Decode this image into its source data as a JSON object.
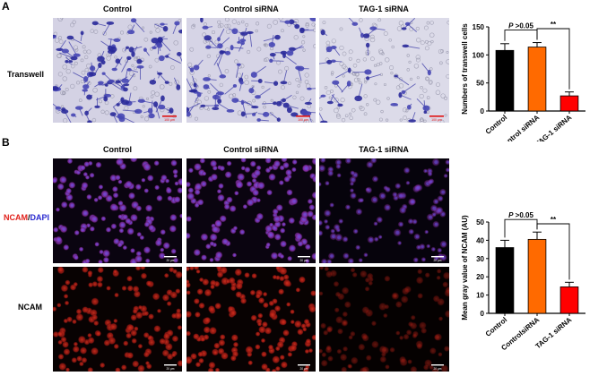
{
  "panel_a": {
    "letter": "A",
    "columns": [
      "Control",
      "Control siRNA",
      "TAG-1 siRNA"
    ],
    "row_label": "Transwell",
    "scale_label": "100 μm"
  },
  "panel_b": {
    "letter": "B",
    "columns": [
      "Control",
      "Control siRNA",
      "TAG-1 siRNA"
    ],
    "row_label_merge_a": "NCAM",
    "row_label_merge_sep": "/",
    "row_label_merge_b": "DAPI",
    "row_label_ncam": "NCAM",
    "scale_label": "20 μm",
    "colors": {
      "ncam": "#e0201a",
      "dapi": "#2a2ad0"
    }
  },
  "chart_data": [
    {
      "type": "bar",
      "categories": [
        "Control",
        "Control siRNA",
        "TAG-1 siRNA"
      ],
      "values": [
        108,
        114,
        27
      ],
      "errors": [
        12,
        8,
        7
      ],
      "colors": [
        "#000000",
        "#ff6a00",
        "#ff0000"
      ],
      "title": "",
      "xlabel": "",
      "ylabel": "Numbers of transwell cells",
      "ylim": [
        0,
        150
      ],
      "yticks": [
        0,
        50,
        100,
        150
      ],
      "annotations": [
        {
          "text": "P >0.05",
          "between": [
            0,
            1
          ]
        },
        {
          "text": "**",
          "between": [
            1,
            2
          ]
        }
      ]
    },
    {
      "type": "bar",
      "categories": [
        "Control",
        "ControlsiRNA",
        "TAG-1 siRNA"
      ],
      "values": [
        36,
        40.5,
        14.5
      ],
      "errors": [
        4,
        4,
        2.5
      ],
      "colors": [
        "#000000",
        "#ff6a00",
        "#ff0000"
      ],
      "title": "",
      "xlabel": "",
      "ylabel": "Mean gray value of NCAM (AU)",
      "ylim": [
        0,
        50
      ],
      "yticks": [
        0,
        10,
        20,
        30,
        40,
        50
      ],
      "annotations": [
        {
          "text": "P >0.05",
          "between": [
            0,
            1
          ]
        },
        {
          "text": "**",
          "between": [
            1,
            2
          ]
        }
      ]
    }
  ]
}
